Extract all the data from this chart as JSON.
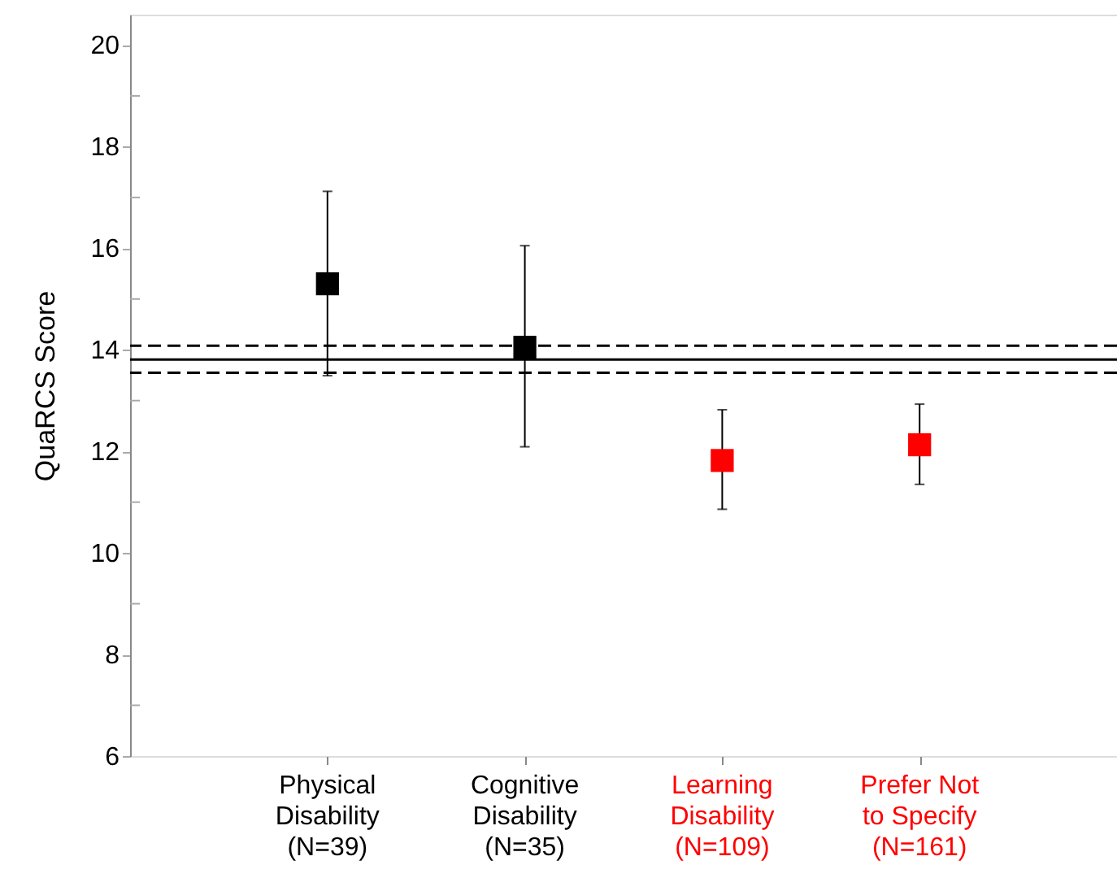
{
  "chart_data": {
    "type": "scatter",
    "ylabel": "QuaRCS Score",
    "marker": "square",
    "categories": [
      "Physical Disability (N=39)",
      "Cognitive Disability (N=35)",
      "Learning Disability (N=109)",
      "Prefer Not to Specify (N=161)"
    ],
    "values": [
      15.3,
      14.05,
      11.82,
      12.13
    ],
    "colors": [
      "#000000",
      "#000000",
      "#ff0000",
      "#ff0000"
    ],
    "errors": [
      [
        13.49,
        17.12
      ],
      [
        12.09,
        16.05
      ],
      [
        10.86,
        12.82
      ],
      [
        11.35,
        12.93
      ]
    ],
    "ylim": [
      6,
      20.6
    ],
    "yticks": [
      6,
      {
        "value": 7,
        "label": null
      },
      8,
      {
        "value": 9,
        "label": null
      },
      10,
      {
        "value": 11,
        "label": null
      },
      12,
      {
        "value": 13,
        "label": null
      },
      14,
      {
        "value": 15,
        "label": null
      },
      16,
      {
        "value": 17,
        "label": null
      },
      18,
      {
        "value": 19,
        "label": null
      },
      20
    ],
    "ref_lines": [
      {
        "axis": "y",
        "value": 13.81,
        "line_style": "solid",
        "color": "#000000"
      },
      {
        "axis": "y",
        "value": 14.08,
        "line_style": "dashed",
        "color": "#000000"
      },
      {
        "axis": "y",
        "value": 13.55,
        "line_style": "dashed",
        "color": "#000000"
      }
    ],
    "grid": false
  }
}
